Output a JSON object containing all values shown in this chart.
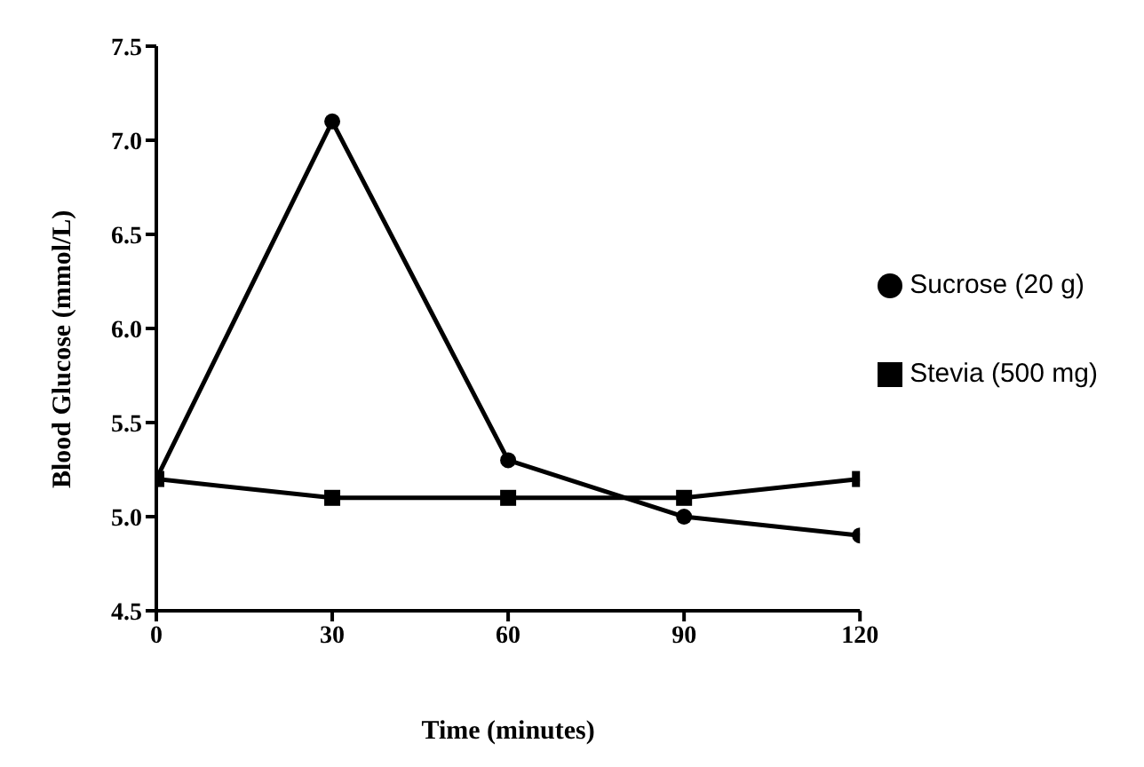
{
  "chart_data": {
    "type": "line",
    "xlabel": "Time (minutes)",
    "ylabel": "Blood Glucose (mmol/L)",
    "x": [
      0,
      30,
      60,
      90,
      120
    ],
    "series": [
      {
        "name": "Sucrose (20 g)",
        "color": "#000000",
        "marker": "circle",
        "values": [
          5.2,
          7.1,
          5.3,
          5.0,
          4.9
        ]
      },
      {
        "name": "Stevia (500 mg)",
        "color": "#000000",
        "marker": "square",
        "values": [
          5.2,
          5.1,
          5.1,
          5.1,
          5.2
        ]
      }
    ],
    "xlim": [
      0,
      120
    ],
    "xticks": [
      0,
      30,
      60,
      90,
      120
    ],
    "ylim": [
      4.5,
      7.5
    ],
    "yticks": [
      4.5,
      {
        "value": 5.0,
        "label": "5.0"
      },
      5.5,
      {
        "value": 6.0,
        "label": "6.0"
      },
      6.5,
      {
        "value": 7.0,
        "label": "7.0"
      },
      7.5
    ],
    "grid": false,
    "legend": "right",
    "line_style": "solid"
  }
}
